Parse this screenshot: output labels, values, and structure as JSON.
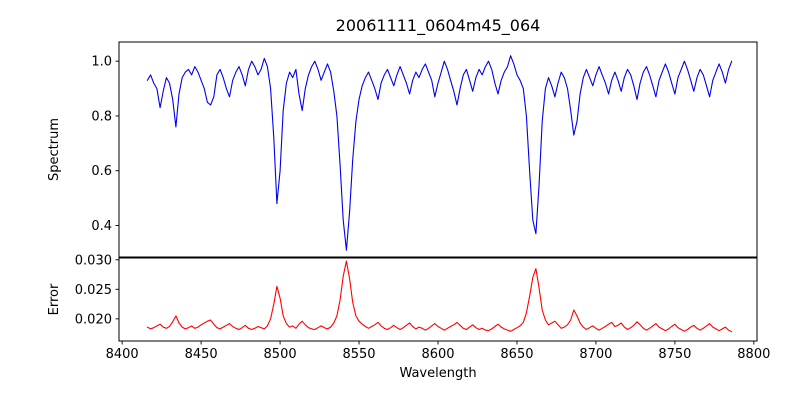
{
  "figure": {
    "title": "20061111_0604m45_064",
    "background_color": "#ffffff",
    "text_color": "#000000"
  },
  "chart_data": {
    "type": "line",
    "title": "20061111_0604m45_064",
    "xlabel": "Wavelength",
    "grid": false,
    "legend_position": "none",
    "xlim": [
      8398,
      8802
    ],
    "x_start": 8416,
    "x_step": 2,
    "xticks": [
      8400,
      8450,
      8500,
      8550,
      8600,
      8650,
      8700,
      8750,
      8800
    ],
    "xtick_labels": [
      "8400",
      "8450",
      "8500",
      "8550",
      "8600",
      "8650",
      "8700",
      "8750",
      "8800"
    ],
    "panels": [
      {
        "name": "spectrum",
        "ylabel": "Spectrum",
        "color": "#0000ee",
        "ylim": [
          0.285,
          1.07
        ],
        "yticks": [
          0.4,
          0.6,
          0.8,
          1.0
        ],
        "ytick_labels": [
          "0.4",
          "0.6",
          "0.8",
          "1.0"
        ],
        "y": [
          0.93,
          0.95,
          0.92,
          0.9,
          0.83,
          0.89,
          0.94,
          0.92,
          0.86,
          0.76,
          0.88,
          0.94,
          0.96,
          0.97,
          0.95,
          0.98,
          0.96,
          0.93,
          0.9,
          0.85,
          0.84,
          0.87,
          0.95,
          0.97,
          0.94,
          0.9,
          0.87,
          0.93,
          0.96,
          0.98,
          0.95,
          0.91,
          0.97,
          1.0,
          0.98,
          0.95,
          0.97,
          1.01,
          0.98,
          0.9,
          0.72,
          0.48,
          0.6,
          0.82,
          0.92,
          0.96,
          0.94,
          0.97,
          0.88,
          0.82,
          0.9,
          0.95,
          0.98,
          1.0,
          0.97,
          0.93,
          0.96,
          0.99,
          0.96,
          0.89,
          0.8,
          0.62,
          0.42,
          0.31,
          0.45,
          0.64,
          0.78,
          0.86,
          0.91,
          0.94,
          0.96,
          0.93,
          0.9,
          0.86,
          0.92,
          0.95,
          0.97,
          0.94,
          0.91,
          0.95,
          0.98,
          0.95,
          0.92,
          0.88,
          0.93,
          0.96,
          0.94,
          0.97,
          0.99,
          0.96,
          0.93,
          0.87,
          0.92,
          0.96,
          1.0,
          0.97,
          0.93,
          0.89,
          0.84,
          0.9,
          0.95,
          0.97,
          0.93,
          0.89,
          0.94,
          0.97,
          0.95,
          0.98,
          1.0,
          0.97,
          0.92,
          0.88,
          0.93,
          0.96,
          0.98,
          1.02,
          0.99,
          0.95,
          0.93,
          0.9,
          0.8,
          0.6,
          0.42,
          0.37,
          0.55,
          0.78,
          0.9,
          0.94,
          0.91,
          0.87,
          0.92,
          0.96,
          0.94,
          0.9,
          0.82,
          0.73,
          0.78,
          0.88,
          0.94,
          0.97,
          0.94,
          0.91,
          0.95,
          0.98,
          0.95,
          0.92,
          0.88,
          0.93,
          0.96,
          0.93,
          0.89,
          0.94,
          0.97,
          0.95,
          0.91,
          0.86,
          0.92,
          0.96,
          0.98,
          0.95,
          0.91,
          0.87,
          0.93,
          0.96,
          0.99,
          0.96,
          0.92,
          0.88,
          0.94,
          0.97,
          1.0,
          0.97,
          0.93,
          0.89,
          0.94,
          0.97,
          0.95,
          0.91,
          0.87,
          0.93,
          0.96,
          0.99,
          0.96,
          0.92,
          0.97,
          1.0
        ]
      },
      {
        "name": "error",
        "ylabel": "Error",
        "color": "#ff0000",
        "ylim": [
          0.01625,
          0.0303
        ],
        "yticks": [
          0.02,
          0.025,
          0.03
        ],
        "ytick_labels": [
          "0.020",
          "0.025",
          "0.030"
        ],
        "y": [
          0.0186,
          0.0183,
          0.0185,
          0.0188,
          0.0191,
          0.0186,
          0.0184,
          0.0187,
          0.0195,
          0.0205,
          0.0193,
          0.0186,
          0.0183,
          0.0185,
          0.0188,
          0.0184,
          0.0186,
          0.019,
          0.0193,
          0.0196,
          0.0198,
          0.0191,
          0.0185,
          0.0183,
          0.0186,
          0.0189,
          0.0192,
          0.0187,
          0.0184,
          0.0182,
          0.0185,
          0.0189,
          0.0184,
          0.0182,
          0.0184,
          0.0187,
          0.0185,
          0.0183,
          0.0188,
          0.02,
          0.0225,
          0.0255,
          0.0235,
          0.0205,
          0.0192,
          0.0186,
          0.0188,
          0.0184,
          0.0191,
          0.0196,
          0.019,
          0.0185,
          0.0183,
          0.0182,
          0.0185,
          0.0188,
          0.0185,
          0.0183,
          0.0186,
          0.0193,
          0.0205,
          0.0232,
          0.0272,
          0.0298,
          0.0268,
          0.0228,
          0.0205,
          0.0196,
          0.0191,
          0.0187,
          0.0184,
          0.0187,
          0.019,
          0.0194,
          0.0188,
          0.0184,
          0.0182,
          0.0185,
          0.0189,
          0.0185,
          0.0182,
          0.0185,
          0.0189,
          0.0193,
          0.0187,
          0.0183,
          0.0186,
          0.0184,
          0.0181,
          0.0184,
          0.0188,
          0.0192,
          0.0187,
          0.0184,
          0.0181,
          0.0184,
          0.0187,
          0.019,
          0.0194,
          0.0189,
          0.0184,
          0.0182,
          0.0186,
          0.019,
          0.0185,
          0.0182,
          0.0184,
          0.0181,
          0.018,
          0.0183,
          0.0187,
          0.0191,
          0.0186,
          0.0183,
          0.0181,
          0.0179,
          0.0182,
          0.0185,
          0.0188,
          0.0194,
          0.021,
          0.0238,
          0.027,
          0.0285,
          0.0252,
          0.0215,
          0.0198,
          0.019,
          0.0193,
          0.0196,
          0.019,
          0.0184,
          0.0186,
          0.019,
          0.0198,
          0.0215,
          0.0205,
          0.0193,
          0.0186,
          0.0182,
          0.0185,
          0.0188,
          0.0184,
          0.0181,
          0.0184,
          0.0187,
          0.0191,
          0.0194,
          0.0187,
          0.0189,
          0.0193,
          0.0186,
          0.0182,
          0.0185,
          0.0189,
          0.0195,
          0.019,
          0.0184,
          0.0181,
          0.0184,
          0.0188,
          0.0192,
          0.0186,
          0.0183,
          0.018,
          0.0183,
          0.0187,
          0.0191,
          0.0185,
          0.0182,
          0.0179,
          0.0182,
          0.0186,
          0.0189,
          0.0184,
          0.0181,
          0.0184,
          0.0188,
          0.0192,
          0.0186,
          0.0183,
          0.018,
          0.0183,
          0.0186,
          0.0181,
          0.0178
        ]
      }
    ]
  }
}
